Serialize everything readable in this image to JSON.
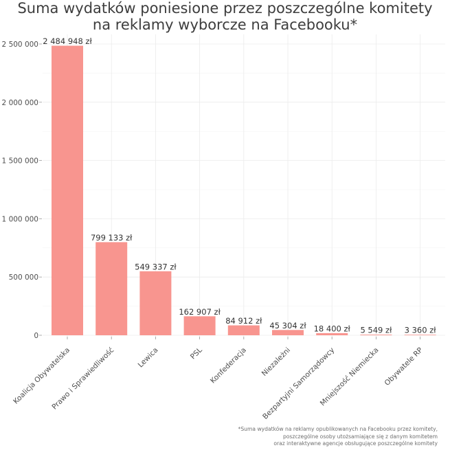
{
  "title": {
    "line1": "Suma wydatków poniesione przez poszczególne komitety",
    "line2": "na reklamy wyborcze na Facebooku*"
  },
  "footnote": {
    "line1": "*Suma wydatków na reklamy opublikowanych na Facebooku przez komitety,",
    "line2": "poszczególne osoby utożsamiające się z danym komitetem",
    "line3": "oraz interaktywne agencje obsługujące poszczególne komitety"
  },
  "chart_data": {
    "type": "bar",
    "categories": [
      "Koalicja Obywatelska",
      "Prawo i Sprawiedliwość",
      "Lewica",
      "PSL",
      "Konfederacja",
      "Niezależni",
      "Bezpartyjni Samorządowcy",
      "Mniejszość Niemiecka",
      "Obywatele RP"
    ],
    "values": [
      2484948,
      799133,
      549337,
      162907,
      84912,
      45304,
      18400,
      5549,
      3360
    ],
    "data_labels": [
      "2 484 948 zł",
      "799 133 zł",
      "549 337 zł",
      "162 907 zł",
      "84 912 zł",
      "45 304 zł",
      "18 400 zł",
      "5 549 zł",
      "3 360 zł"
    ],
    "y_ticks": [
      0,
      500000,
      1000000,
      1500000,
      2000000,
      2500000
    ],
    "y_tick_labels": [
      "0",
      "500 000",
      "1 000 000",
      "1 500 000",
      "2 000 000",
      "2 500 000"
    ],
    "ylim": [
      0,
      2500000
    ],
    "grid": true,
    "bar_color": "#f8958f"
  }
}
